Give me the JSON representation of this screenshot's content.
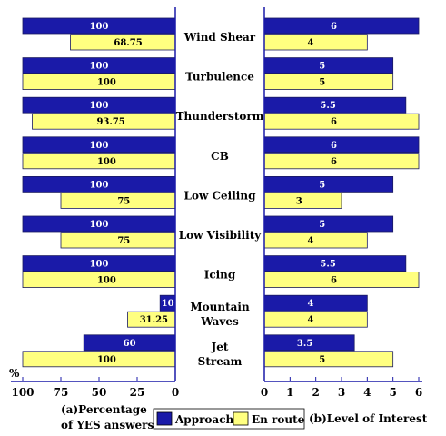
{
  "chart_data": [
    {
      "type": "bar",
      "orientation": "horizontal",
      "direction": "right-to-left",
      "title": "(a)Percentage of YES answers",
      "title_lines": [
        "(a)Percentage",
        "of YES answers"
      ],
      "unit_label": "%",
      "categories": [
        "Wind Shear",
        "Turbulence",
        "Thunderstorm",
        "CB",
        "Low Ceiling",
        "Low Visibility",
        "Icing",
        "Mountain Waves",
        "Jet Stream"
      ],
      "category_lines": [
        [
          "Wind Shear"
        ],
        [
          "Turbulence"
        ],
        [
          "Thunderstorm"
        ],
        [
          "CB"
        ],
        [
          "Low Ceiling"
        ],
        [
          "Low Visibility"
        ],
        [
          "Icing"
        ],
        [
          "Mountain",
          "Waves"
        ],
        [
          "Jet",
          "Stream"
        ]
      ],
      "series": [
        {
          "name": "Approach",
          "values": [
            100,
            100,
            100,
            100,
            100,
            100,
            100,
            10,
            60
          ],
          "labels": [
            "100",
            "100",
            "100",
            "100",
            "100",
            "100",
            "100",
            "10",
            "60"
          ]
        },
        {
          "name": "En route",
          "values": [
            68.75,
            100,
            93.75,
            100,
            75,
            75,
            100,
            31.25,
            100
          ],
          "labels": [
            "68.75",
            "100",
            "93.75",
            "100",
            "75",
            "75",
            "100",
            "31.25",
            "100"
          ]
        }
      ],
      "xlim": [
        0,
        100
      ],
      "ticks": [
        100,
        75,
        50,
        25,
        0
      ],
      "tick_labels": [
        "100",
        "75",
        "50",
        "25",
        "0"
      ]
    },
    {
      "type": "bar",
      "orientation": "horizontal",
      "title": "(b)Level of Interest",
      "categories": [
        "Wind Shear",
        "Turbulence",
        "Thunderstorm",
        "CB",
        "Low Ceiling",
        "Low Visibility",
        "Icing",
        "Mountain Waves",
        "Jet Stream"
      ],
      "series": [
        {
          "name": "Approach",
          "values": [
            6,
            5,
            5.5,
            6,
            5,
            5,
            5.5,
            4,
            3.5
          ],
          "labels": [
            "6",
            "5",
            "5.5",
            "6",
            "5",
            "5",
            "5.5",
            "4",
            "3.5"
          ]
        },
        {
          "name": "En route",
          "values": [
            4,
            5,
            6,
            6,
            3,
            4,
            6,
            4,
            5
          ],
          "labels": [
            "4",
            "5",
            "6",
            "6",
            "3",
            "4",
            "6",
            "4",
            "5"
          ]
        }
      ],
      "xlim": [
        0,
        6
      ],
      "ticks": [
        0,
        1,
        2,
        3,
        4,
        5,
        6
      ],
      "tick_labels": [
        "0",
        "1",
        "2",
        "3",
        "4",
        "5",
        "6"
      ]
    }
  ],
  "legend": {
    "items": [
      {
        "name": "Approach",
        "color": "#1a1aa8"
      },
      {
        "name": "En route",
        "color": "#ffff80"
      }
    ]
  },
  "colors": {
    "approach": "#1a1aa8",
    "enroute": "#ffff80",
    "axis": "#1a1aa8"
  }
}
